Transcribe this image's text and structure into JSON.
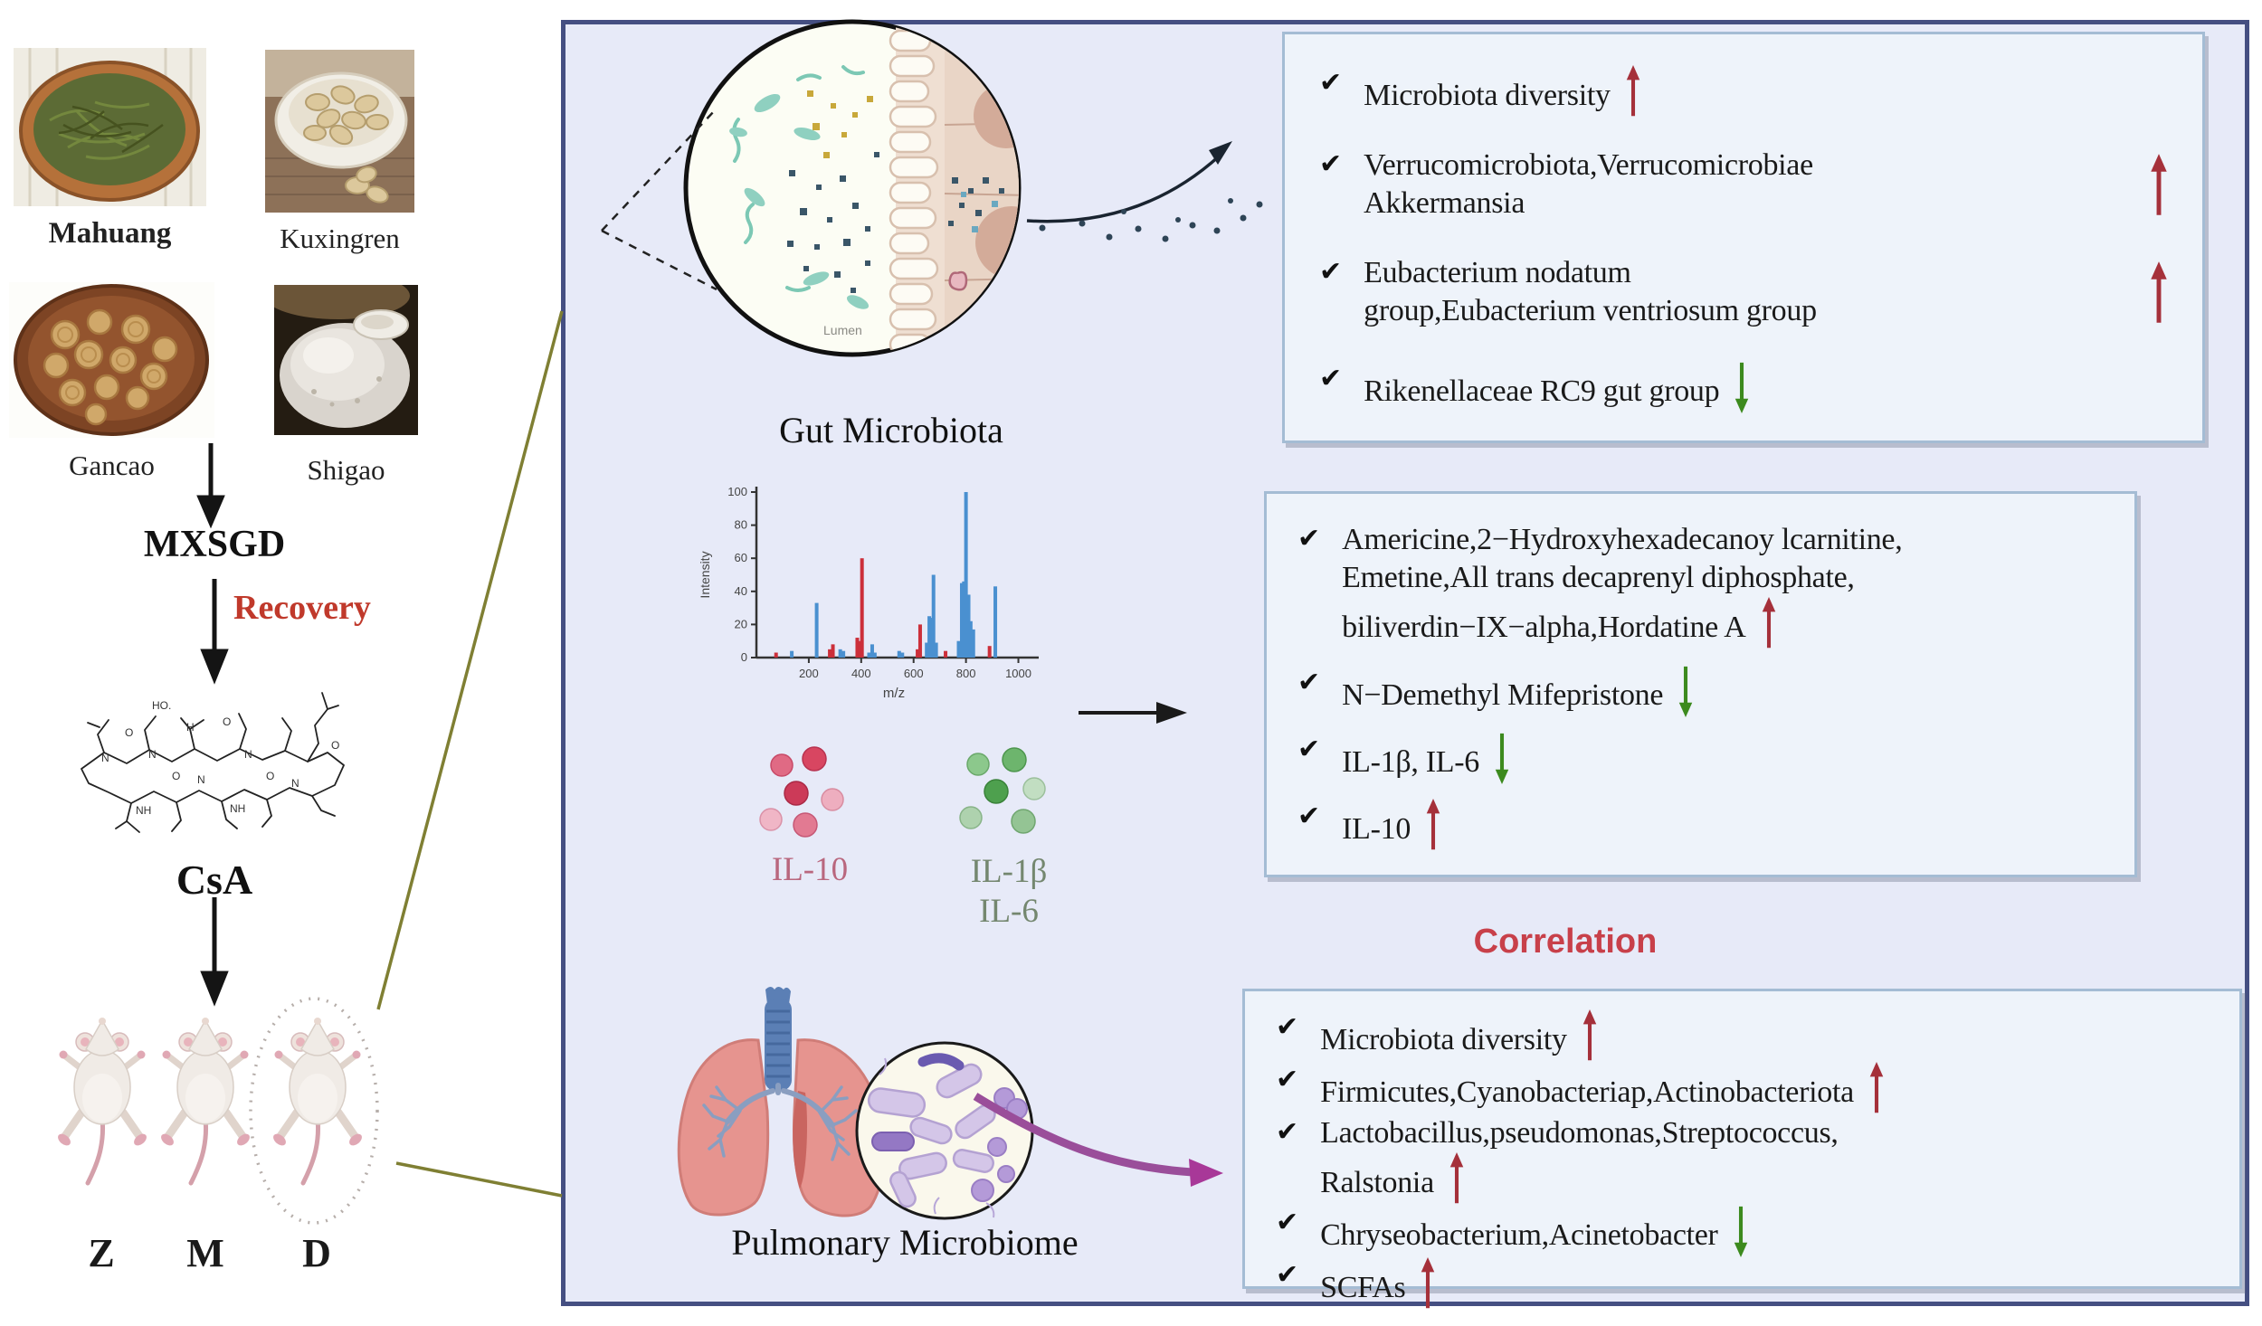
{
  "ui": {
    "check_glyph": "✔"
  },
  "colors": {
    "panel_border": "#454f82",
    "panel_bg": "#e7eaf8",
    "box_bg": "#eef3fa",
    "box_border": "#a4bcd4",
    "arrow_up": "#a5303a",
    "arrow_down": "#3c8a1e",
    "correlation": "#c8404a",
    "recovery": "#c0392b"
  },
  "left_flow": {
    "herbs": [
      {
        "label": "Mahuang"
      },
      {
        "label": "Kuxingren"
      },
      {
        "label": "Gancao"
      },
      {
        "label": "Shigao"
      }
    ],
    "formula_label": "MXSGD",
    "process_label": "Recovery",
    "compound_label": "CsA",
    "mouse_groups": [
      "Z",
      "M",
      "D"
    ]
  },
  "gut_section": {
    "illustration_label": "Gut Microbiota",
    "lumen_label": "Lumen",
    "findings": [
      {
        "text": "Microbiota diversity",
        "arrow": "up",
        "arrow_pos": "inline"
      },
      {
        "text": "Verrucomicrobiota,Verrucomicrobiae\nAkkermansia",
        "arrow": "up",
        "arrow_pos": "right"
      },
      {
        "text": "Eubacterium nodatum\ngroup,Eubacterium ventriosum group",
        "arrow": "up",
        "arrow_pos": "right"
      },
      {
        "text": "Rikenellaceae RC9 gut group",
        "arrow": "down",
        "arrow_pos": "inline"
      }
    ],
    "correlation_label": "Correlation"
  },
  "metabolite_section": {
    "il10_label": "IL-10",
    "il1b_label": "IL-1β",
    "il6_label": "IL-6",
    "findings": [
      {
        "text": "Americine,2−Hydroxyhexadecanoy lcarnitine,\nEmetine,All trans decaprenyl diphosphate,\nbiliverdin−IX−alpha,Hordatine A",
        "arrow": "up",
        "arrow_pos": "inline"
      },
      {
        "text": "N−Demethyl Mifepristone",
        "arrow": "down",
        "arrow_pos": "inline"
      },
      {
        "text": "IL-1β, IL-6",
        "arrow": "down",
        "arrow_pos": "inline"
      },
      {
        "text": "IL-10",
        "arrow": "up",
        "arrow_pos": "inline"
      }
    ],
    "correlation_label": "Correlation"
  },
  "pulmonary_section": {
    "illustration_label": "Pulmonary Microbiome",
    "findings": [
      {
        "text": "Microbiota diversity",
        "arrow": "up",
        "arrow_pos": "inline"
      },
      {
        "text": "Firmicutes,Cyanobacteriap,Actinobacteriota",
        "arrow": "up",
        "arrow_pos": "inline"
      },
      {
        "text": "Lactobacillus,pseudomonas,Streptococcus,\nRalstonia",
        "arrow": "up",
        "arrow_pos": "inline"
      },
      {
        "text": "Chryseobacterium,Acinetobacter",
        "arrow": "down",
        "arrow_pos": "inline"
      },
      {
        "text": "SCFAs",
        "arrow": "up",
        "arrow_pos": "inline"
      }
    ]
  },
  "chart_data": {
    "type": "bar",
    "title": "",
    "xlabel": "m/z",
    "ylabel": "Intensity",
    "xlim": [
      0,
      1050
    ],
    "ylim": [
      0,
      100
    ],
    "xticks": [
      200,
      400,
      600,
      800,
      1000
    ],
    "yticks": [
      0,
      20,
      40,
      60,
      80,
      100
    ],
    "legend": null,
    "series": [
      {
        "name": "spectrum ions (blue)",
        "color": "#4a90d0",
        "points": [
          [
            135,
            4
          ],
          [
            230,
            33
          ],
          [
            320,
            5
          ],
          [
            332,
            4
          ],
          [
            430,
            3
          ],
          [
            442,
            8
          ],
          [
            452,
            3
          ],
          [
            545,
            4
          ],
          [
            557,
            3
          ],
          [
            650,
            9
          ],
          [
            660,
            25
          ],
          [
            668,
            24
          ],
          [
            676,
            50
          ],
          [
            686,
            9
          ],
          [
            772,
            10
          ],
          [
            784,
            45
          ],
          [
            792,
            46
          ],
          [
            800,
            100
          ],
          [
            810,
            38
          ],
          [
            818,
            22
          ],
          [
            828,
            17
          ],
          [
            912,
            43
          ]
        ]
      },
      {
        "name": "spectrum ions (red)",
        "color": "#cc2f3a",
        "points": [
          [
            75,
            3
          ],
          [
            280,
            5
          ],
          [
            292,
            8
          ],
          [
            385,
            12
          ],
          [
            395,
            10
          ],
          [
            403,
            60
          ],
          [
            615,
            5
          ],
          [
            625,
            20
          ],
          [
            722,
            4
          ],
          [
            890,
            7
          ]
        ]
      }
    ]
  }
}
